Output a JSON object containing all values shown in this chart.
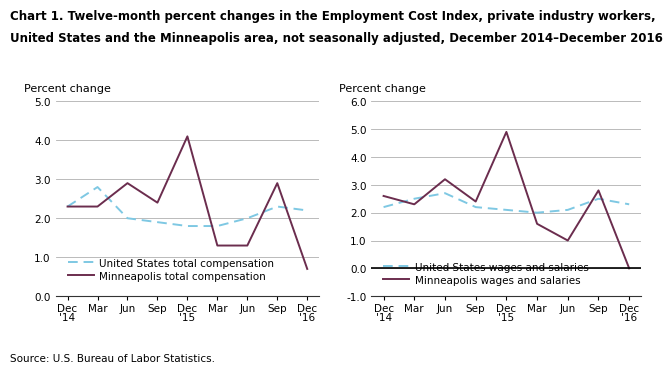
{
  "title_line1": "Chart 1. Twelve-month percent changes in the Employment Cost Index, private industry workers,",
  "title_line2": "United States and the Minneapolis area, not seasonally adjusted, December 2014–December 2016",
  "source": "Source: U.S. Bureau of Labor Statistics.",
  "x_labels": [
    "Dec\n'14",
    "Mar",
    "Jun",
    "Sep",
    "Dec\n'15",
    "Mar",
    "Jun",
    "Sep",
    "Dec\n'16"
  ],
  "left_chart": {
    "ylabel": "Percent change",
    "ylim": [
      0.0,
      5.0
    ],
    "yticks": [
      0.0,
      1.0,
      2.0,
      3.0,
      4.0,
      5.0
    ],
    "us_total_comp": [
      2.3,
      2.8,
      2.0,
      1.9,
      1.8,
      1.8,
      2.0,
      2.3,
      2.2
    ],
    "mpls_total_comp": [
      2.3,
      2.3,
      2.9,
      2.4,
      4.1,
      1.3,
      1.3,
      2.9,
      0.7
    ],
    "legend1": "United States total compensation",
    "legend2": "Minneapolis total compensation"
  },
  "right_chart": {
    "ylabel": "Percent change",
    "ylim": [
      -1.0,
      6.0
    ],
    "yticks": [
      -1.0,
      0.0,
      1.0,
      2.0,
      3.0,
      4.0,
      5.0,
      6.0
    ],
    "us_wages_sal": [
      2.2,
      2.5,
      2.7,
      2.2,
      2.1,
      2.0,
      2.1,
      2.5,
      2.3
    ],
    "mpls_wages_sal": [
      2.6,
      2.3,
      3.2,
      2.4,
      4.9,
      1.6,
      1.0,
      2.8,
      0.0
    ],
    "legend1": "United States wages and salaries",
    "legend2": "Minneapolis wages and salaries"
  },
  "us_color": "#7EC8E3",
  "mpls_color": "#6B2D4E",
  "title_fontsize": 8.5,
  "axis_label_fontsize": 8,
  "tick_fontsize": 7.5,
  "legend_fontsize": 7.5,
  "source_fontsize": 7.5
}
